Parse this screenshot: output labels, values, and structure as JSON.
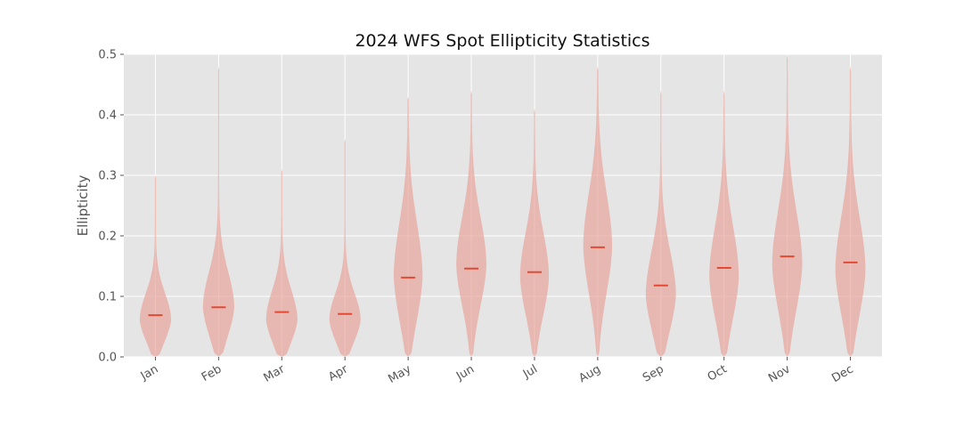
{
  "chart_data": {
    "type": "violin",
    "title": "2024 WFS Spot Ellipticity Statistics",
    "xlabel": "",
    "ylabel": "Ellipticity",
    "ylim": [
      0,
      0.5
    ],
    "yticks": [
      "0.0",
      "0.1",
      "0.2",
      "0.3",
      "0.4",
      "0.5"
    ],
    "grid": true,
    "colors": {
      "background": "#e5e5e5",
      "grid": "#ffffff",
      "violin_fill": "#e8a59c",
      "median": "#e24a33"
    },
    "categories": [
      "Jan",
      "Feb",
      "Mar",
      "Apr",
      "May",
      "Jun",
      "Jul",
      "Aug",
      "Sep",
      "Oct",
      "Nov",
      "Dec"
    ],
    "medians": [
      0.069,
      0.082,
      0.074,
      0.071,
      0.131,
      0.146,
      0.14,
      0.181,
      0.118,
      0.147,
      0.166,
      0.156
    ],
    "mins": [
      0.0,
      0.0,
      0.0,
      0.0,
      0.0,
      0.0,
      0.0,
      0.0,
      0.0,
      0.0,
      0.0,
      0.0
    ],
    "maxs": [
      0.3,
      0.48,
      0.31,
      0.36,
      0.43,
      0.44,
      0.41,
      0.48,
      0.44,
      0.44,
      0.5,
      0.48
    ],
    "modes": [
      0.06,
      0.08,
      0.06,
      0.06,
      0.13,
      0.15,
      0.13,
      0.18,
      0.1,
      0.13,
      0.15,
      0.14
    ],
    "widths": [
      0.48,
      0.48,
      0.48,
      0.48,
      0.44,
      0.46,
      0.44,
      0.44,
      0.46,
      0.45,
      0.46,
      0.46
    ],
    "spreads": [
      0.045,
      0.06,
      0.05,
      0.045,
      0.09,
      0.08,
      0.075,
      0.09,
      0.075,
      0.085,
      0.09,
      0.09
    ]
  }
}
